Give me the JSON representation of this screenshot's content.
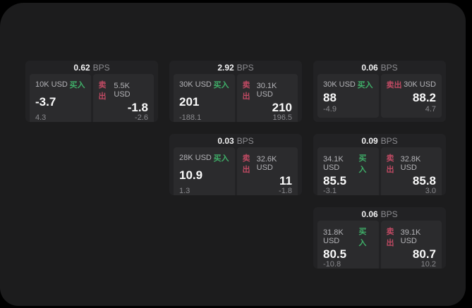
{
  "labels": {
    "buy": "买入",
    "sell": "卖出",
    "bps_suffix": "BPS"
  },
  "colors": {
    "background": "#000000",
    "panel": "#1c1c1d",
    "card": "#222224",
    "cell": "#2b2b2d",
    "buy_accent": "#3fae68",
    "sell_accent": "#c04a63"
  },
  "cards": [
    {
      "row": 1,
      "col": 1,
      "bps": "0.62",
      "buy": {
        "size": "10K USD",
        "price": "-3.7",
        "sub": "4.3"
      },
      "sell": {
        "size": "5.5K USD",
        "price": "-1.8",
        "sub": "-2.6"
      }
    },
    {
      "row": 1,
      "col": 2,
      "bps": "2.92",
      "buy": {
        "size": "30K USD",
        "price": "201",
        "sub": "-188.1"
      },
      "sell": {
        "size": "30.1K USD",
        "price": "210",
        "sub": "196.5"
      }
    },
    {
      "row": 1,
      "col": 3,
      "bps": "0.06",
      "buy": {
        "size": "30K USD",
        "price": "88",
        "sub": "-4.9"
      },
      "sell": {
        "size": "30K USD",
        "price": "88.2",
        "sub": "4.7"
      }
    },
    {
      "row": 2,
      "col": 2,
      "bps": "0.03",
      "buy": {
        "size": "28K USD",
        "price": "10.9",
        "sub": "1.3"
      },
      "sell": {
        "size": "32.6K USD",
        "price": "11",
        "sub": "-1.8"
      }
    },
    {
      "row": 2,
      "col": 3,
      "bps": "0.09",
      "buy": {
        "size": "34.1K USD",
        "price": "85.5",
        "sub": "-3.1"
      },
      "sell": {
        "size": "32.8K USD",
        "price": "85.8",
        "sub": "3.0"
      }
    },
    {
      "row": 3,
      "col": 3,
      "bps": "0.06",
      "buy": {
        "size": "31.8K USD",
        "price": "80.5",
        "sub": "-10.8"
      },
      "sell": {
        "size": "39.1K USD",
        "price": "80.7",
        "sub": "10.2"
      }
    }
  ]
}
